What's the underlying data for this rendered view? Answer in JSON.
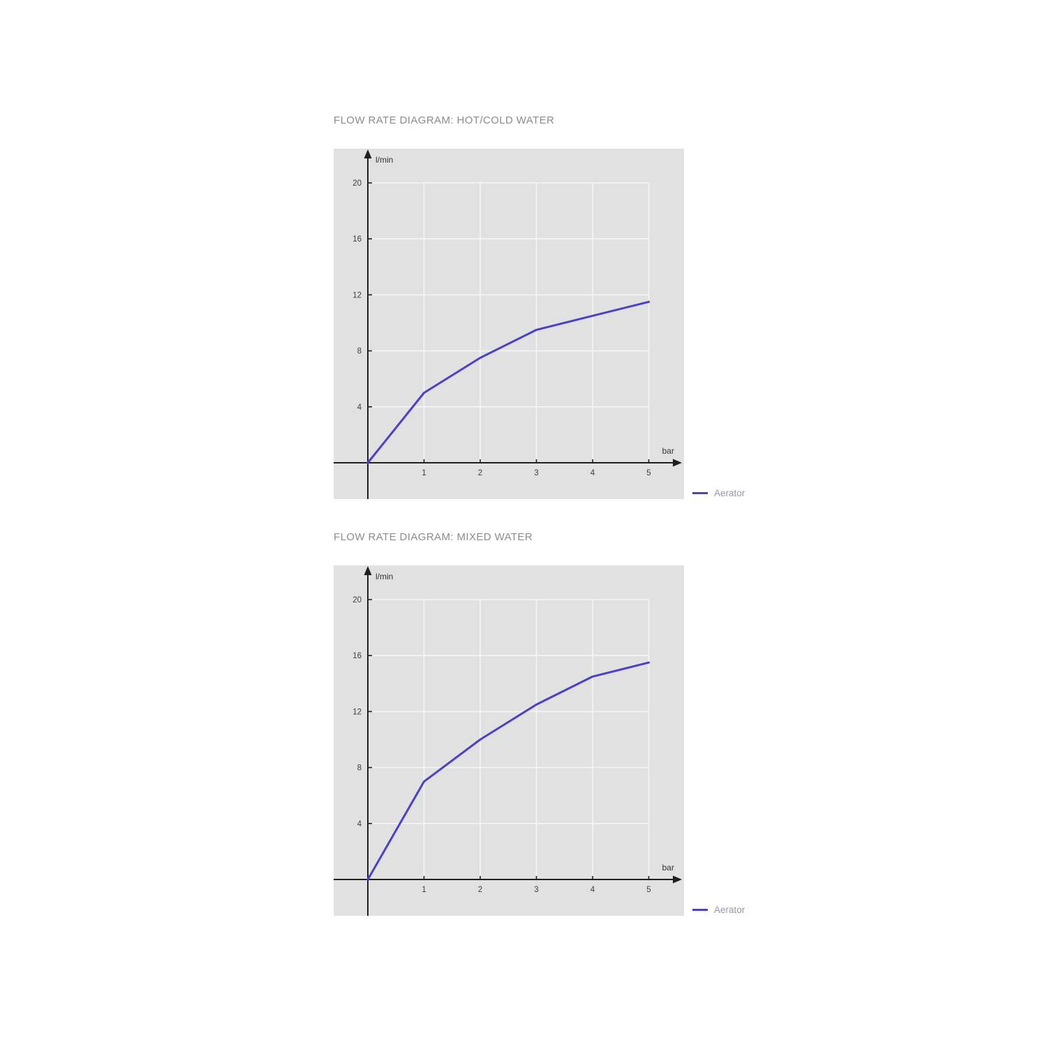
{
  "colors": {
    "page_bg": "#ffffff",
    "panel_bg": "#e1e1e1",
    "grid_line": "#f5f5f5",
    "axis": "#1f1f1f",
    "tick_label": "#3d3d3d",
    "unit_label": "#333333",
    "title_text": "#8b8b8b",
    "legend_text": "#9599a5",
    "line": "#4b3fd0"
  },
  "chart_data": [
    {
      "type": "line",
      "title": "FLOW RATE DIAGRAM: HOT/COLD WATER",
      "xlabel": "bar",
      "ylabel": "l/min",
      "xlim": [
        0,
        5
      ],
      "ylim": [
        0,
        20
      ],
      "xticks": [
        1,
        2,
        3,
        4,
        5
      ],
      "yticks": [
        4,
        8,
        12,
        16,
        20
      ],
      "grid": true,
      "legend_position": "outside-bottom-right",
      "series": [
        {
          "name": "Aerator",
          "color": "#4b3fd0",
          "x": [
            0,
            1,
            2,
            3,
            4,
            5
          ],
          "y": [
            0,
            5,
            7.5,
            9.5,
            10.5,
            11.5
          ]
        }
      ]
    },
    {
      "type": "line",
      "title": "FLOW RATE DIAGRAM: MIXED WATER",
      "xlabel": "bar",
      "ylabel": "l/min",
      "xlim": [
        0,
        5
      ],
      "ylim": [
        0,
        20
      ],
      "xticks": [
        1,
        2,
        3,
        4,
        5
      ],
      "yticks": [
        4,
        8,
        12,
        16,
        20
      ],
      "grid": true,
      "legend_position": "outside-bottom-right",
      "series": [
        {
          "name": "Aerator",
          "color": "#4b3fd0",
          "x": [
            0,
            1,
            2,
            3,
            4,
            5
          ],
          "y": [
            0,
            7,
            10,
            12.5,
            14.5,
            15.5
          ]
        }
      ]
    }
  ]
}
